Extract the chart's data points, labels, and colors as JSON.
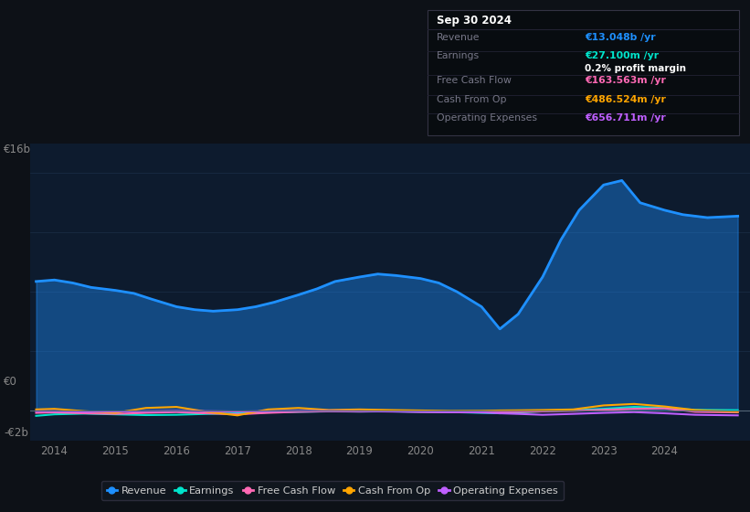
{
  "bg_color": "#0d1117",
  "plot_bg_color": "#0d1b2e",
  "grid_color": "#1a2e47",
  "title_box": {
    "date": "Sep 30 2024",
    "rows": [
      {
        "label": "Revenue",
        "value": "€13.048b /yr",
        "value_color": "#1e90ff",
        "sub": null
      },
      {
        "label": "Earnings",
        "value": "€27.100m /yr",
        "value_color": "#00e5cc",
        "sub": "0.2% profit margin"
      },
      {
        "label": "Free Cash Flow",
        "value": "€163.563m /yr",
        "value_color": "#ff69b4",
        "sub": null
      },
      {
        "label": "Cash From Op",
        "value": "€486.524m /yr",
        "value_color": "#ffa500",
        "sub": null
      },
      {
        "label": "Operating Expenses",
        "value": "€656.711m /yr",
        "value_color": "#bf5fff",
        "sub": null
      }
    ]
  },
  "ylim": [
    -2000000000.0,
    18000000000.0
  ],
  "xlim": [
    2013.6,
    2025.4
  ],
  "xticks": [
    2014,
    2015,
    2016,
    2017,
    2018,
    2019,
    2020,
    2021,
    2022,
    2023,
    2024
  ],
  "revenue": {
    "x": [
      2013.7,
      2014.0,
      2014.3,
      2014.6,
      2015.0,
      2015.3,
      2015.6,
      2016.0,
      2016.3,
      2016.6,
      2017.0,
      2017.3,
      2017.6,
      2018.0,
      2018.3,
      2018.6,
      2019.0,
      2019.3,
      2019.6,
      2020.0,
      2020.3,
      2020.6,
      2021.0,
      2021.3,
      2021.6,
      2022.0,
      2022.3,
      2022.6,
      2023.0,
      2023.3,
      2023.6,
      2024.0,
      2024.3,
      2024.7,
      2025.2
    ],
    "y": [
      8700000000.0,
      8800000000.0,
      8600000000.0,
      8300000000.0,
      8100000000.0,
      7900000000.0,
      7500000000.0,
      7000000000.0,
      6800000000.0,
      6700000000.0,
      6800000000.0,
      7000000000.0,
      7300000000.0,
      7800000000.0,
      8200000000.0,
      8700000000.0,
      9000000000.0,
      9200000000.0,
      9100000000.0,
      8900000000.0,
      8600000000.0,
      8000000000.0,
      7000000000.0,
      5500000000.0,
      6500000000.0,
      9000000000.0,
      11500000000.0,
      13500000000.0,
      15200000000.0,
      15500000000.0,
      14000000000.0,
      13500000000.0,
      13200000000.0,
      13000000000.0,
      13100000000.0
    ],
    "color": "#1e90ff",
    "lw": 2.0
  },
  "earnings": {
    "x": [
      2013.7,
      2014.0,
      2014.5,
      2015.0,
      2015.5,
      2016.0,
      2016.5,
      2017.0,
      2017.5,
      2018.0,
      2018.5,
      2019.0,
      2019.5,
      2020.0,
      2020.5,
      2021.0,
      2021.3,
      2021.6,
      2022.0,
      2022.5,
      2023.0,
      2023.5,
      2024.0,
      2024.5,
      2025.2
    ],
    "y": [
      -350000000.0,
      -250000000.0,
      -200000000.0,
      -250000000.0,
      -300000000.0,
      -280000000.0,
      -220000000.0,
      -180000000.0,
      -120000000.0,
      -80000000.0,
      -50000000.0,
      -60000000.0,
      -50000000.0,
      -80000000.0,
      -100000000.0,
      -150000000.0,
      -180000000.0,
      -120000000.0,
      -50000000.0,
      20000000.0,
      120000000.0,
      250000000.0,
      180000000.0,
      50000000.0,
      30000000.0
    ],
    "color": "#00e5cc",
    "lw": 1.5
  },
  "free_cash_flow": {
    "x": [
      2013.7,
      2014.0,
      2014.5,
      2015.0,
      2015.5,
      2016.0,
      2016.5,
      2017.0,
      2017.5,
      2018.0,
      2018.5,
      2019.0,
      2019.5,
      2020.0,
      2020.5,
      2021.0,
      2021.3,
      2021.6,
      2022.0,
      2022.5,
      2023.0,
      2023.5,
      2024.0,
      2024.5,
      2025.2
    ],
    "y": [
      -150000000.0,
      -120000000.0,
      -180000000.0,
      -220000000.0,
      -150000000.0,
      -100000000.0,
      -180000000.0,
      -250000000.0,
      -150000000.0,
      -80000000.0,
      -40000000.0,
      -60000000.0,
      -40000000.0,
      -80000000.0,
      -100000000.0,
      -120000000.0,
      -100000000.0,
      -80000000.0,
      -50000000.0,
      -20000000.0,
      50000000.0,
      120000000.0,
      150000000.0,
      -80000000.0,
      -120000000.0
    ],
    "color": "#ff69b4",
    "lw": 1.5
  },
  "cash_from_op": {
    "x": [
      2013.7,
      2014.0,
      2014.5,
      2015.0,
      2015.5,
      2016.0,
      2016.5,
      2017.0,
      2017.5,
      2018.0,
      2018.5,
      2019.0,
      2019.5,
      2020.0,
      2020.5,
      2021.0,
      2021.3,
      2021.6,
      2022.0,
      2022.5,
      2023.0,
      2023.5,
      2024.0,
      2024.5,
      2025.2
    ],
    "y": [
      80000000.0,
      120000000.0,
      -40000000.0,
      -150000000.0,
      180000000.0,
      250000000.0,
      -80000000.0,
      -320000000.0,
      80000000.0,
      180000000.0,
      40000000.0,
      80000000.0,
      40000000.0,
      10000000.0,
      -20000000.0,
      -10000000.0,
      10000000.0,
      20000000.0,
      40000000.0,
      80000000.0,
      350000000.0,
      450000000.0,
      280000000.0,
      40000000.0,
      -80000000.0
    ],
    "color": "#ffa500",
    "lw": 1.5
  },
  "op_expenses": {
    "x": [
      2013.7,
      2014.0,
      2014.5,
      2015.0,
      2015.5,
      2016.0,
      2016.5,
      2017.0,
      2017.5,
      2018.0,
      2018.5,
      2019.0,
      2019.5,
      2020.0,
      2020.5,
      2021.0,
      2021.3,
      2021.6,
      2022.0,
      2022.5,
      2023.0,
      2023.5,
      2024.0,
      2024.5,
      2025.2
    ],
    "y": [
      -40000000.0,
      -40000000.0,
      -80000000.0,
      -60000000.0,
      -40000000.0,
      -20000000.0,
      -40000000.0,
      -60000000.0,
      -40000000.0,
      -20000000.0,
      -20000000.0,
      -40000000.0,
      -60000000.0,
      -80000000.0,
      -100000000.0,
      -120000000.0,
      -180000000.0,
      -220000000.0,
      -280000000.0,
      -220000000.0,
      -150000000.0,
      -100000000.0,
      -180000000.0,
      -280000000.0,
      -320000000.0
    ],
    "color": "#bf5fff",
    "lw": 1.5
  },
  "legend": [
    {
      "label": "Revenue",
      "color": "#1e90ff"
    },
    {
      "label": "Earnings",
      "color": "#00e5cc"
    },
    {
      "label": "Free Cash Flow",
      "color": "#ff69b4"
    },
    {
      "label": "Cash From Op",
      "color": "#ffa500"
    },
    {
      "label": "Operating Expenses",
      "color": "#bf5fff"
    }
  ],
  "zero_line_color": "#556677",
  "label_16b": "€16b",
  "label_0": "€0",
  "label_neg2b": "-€2b"
}
